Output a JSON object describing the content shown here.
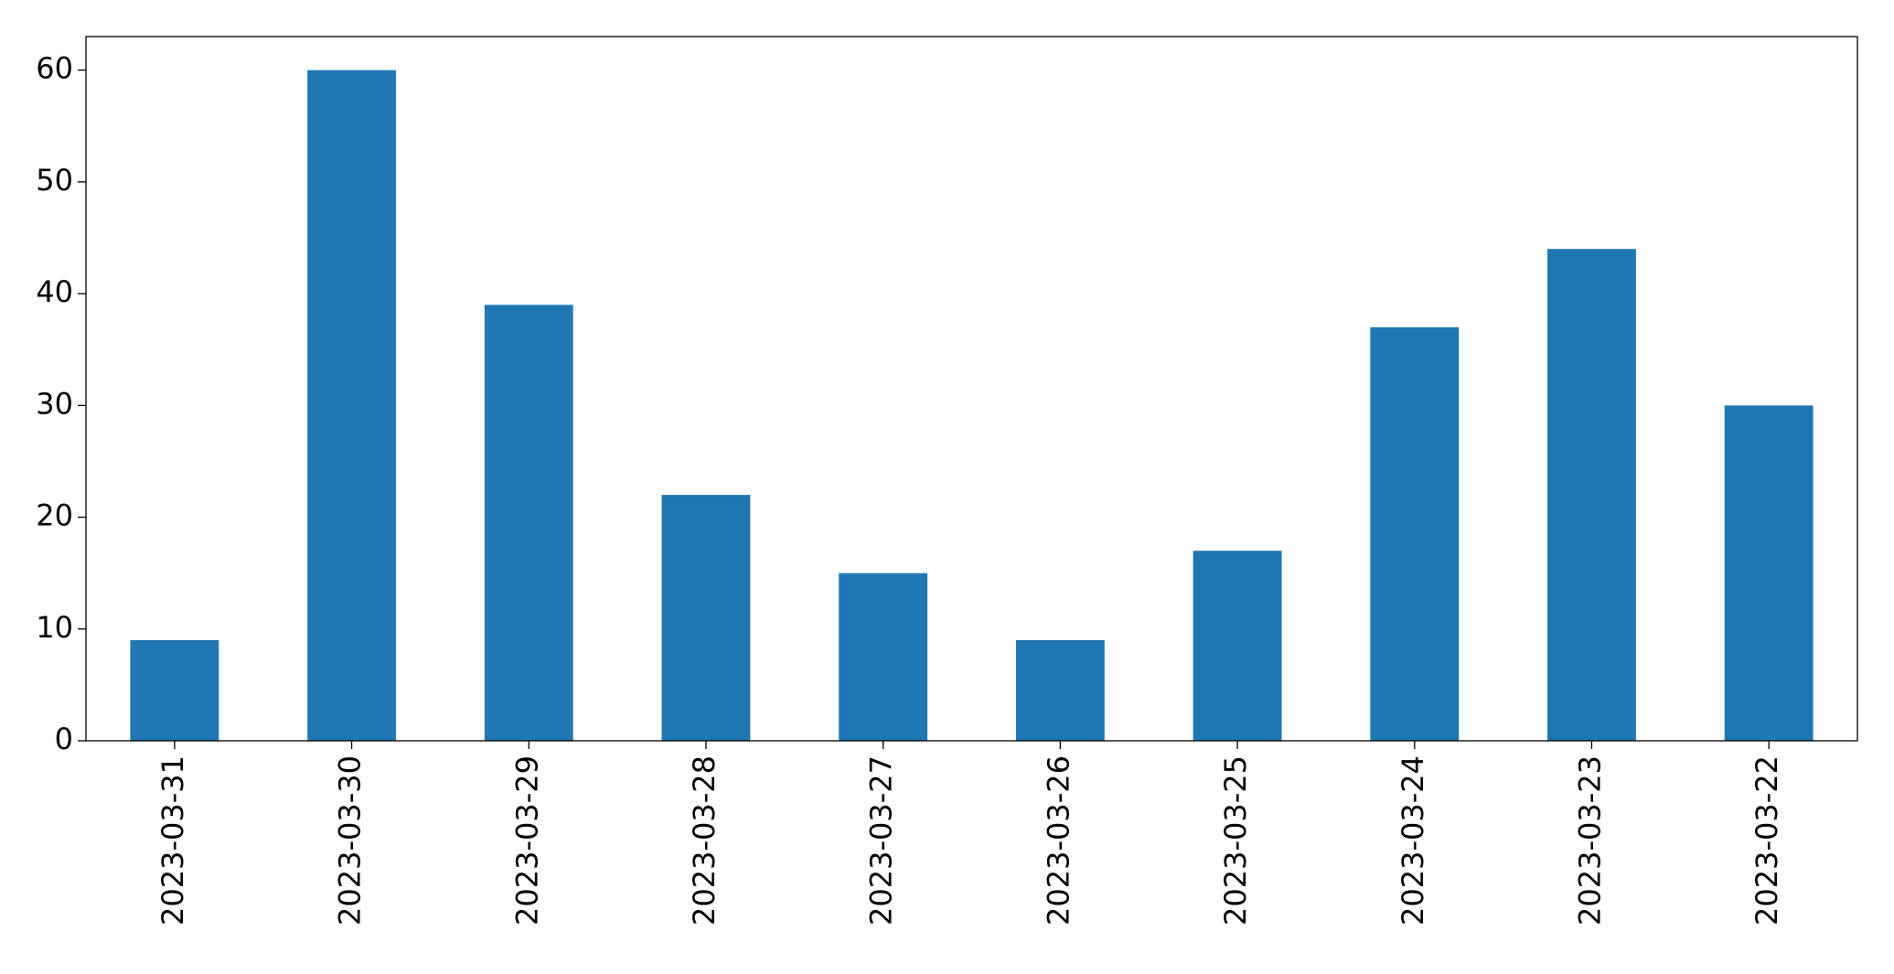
{
  "chart_data": {
    "type": "bar",
    "categories": [
      "2023-03-31",
      "2023-03-30",
      "2023-03-29",
      "2023-03-28",
      "2023-03-27",
      "2023-03-26",
      "2023-03-25",
      "2023-03-24",
      "2023-03-23",
      "2023-03-22"
    ],
    "values": [
      9,
      60,
      39,
      22,
      15,
      9,
      17,
      37,
      44,
      30
    ],
    "color": "#1f77b4",
    "ylim": [
      0,
      63
    ],
    "yticks": [
      0,
      10,
      20,
      30,
      40,
      50,
      60
    ],
    "grid": false
  }
}
